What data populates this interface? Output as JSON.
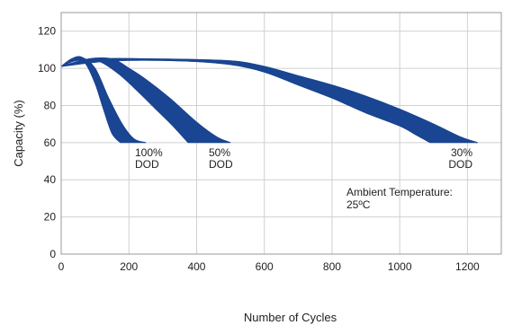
{
  "chart_data": {
    "type": "area",
    "title": "",
    "xlabel": "Number of Cycles",
    "ylabel": "Capacity (%)",
    "xlim": [
      0,
      1300
    ],
    "ylim": [
      0,
      130
    ],
    "xticks": [
      0,
      200,
      400,
      600,
      800,
      1000,
      1200
    ],
    "yticks": [
      0,
      20,
      40,
      60,
      80,
      100,
      120
    ],
    "grid": true,
    "band_color": "#1a4592",
    "series": [
      {
        "name": "100% DOD",
        "label_lines": [
          "100%",
          "DOD"
        ],
        "upper": [
          [
            0,
            101
          ],
          [
            30,
            105
          ],
          [
            60,
            106
          ],
          [
            100,
            100
          ],
          [
            140,
            84
          ],
          [
            180,
            70
          ],
          [
            215,
            62
          ],
          [
            250,
            60
          ]
        ],
        "lower": [
          [
            0,
            101
          ],
          [
            40,
            104
          ],
          [
            70,
            103
          ],
          [
            100,
            92
          ],
          [
            125,
            78
          ],
          [
            150,
            65
          ],
          [
            175,
            60
          ]
        ]
      },
      {
        "name": "50% DOD",
        "label_lines": [
          "50%",
          "DOD"
        ],
        "upper": [
          [
            0,
            101
          ],
          [
            80,
            105
          ],
          [
            150,
            105
          ],
          [
            200,
            100
          ],
          [
            250,
            94
          ],
          [
            320,
            84
          ],
          [
            400,
            71
          ],
          [
            460,
            63
          ],
          [
            500,
            60
          ]
        ],
        "lower": [
          [
            0,
            101
          ],
          [
            70,
            104
          ],
          [
            110,
            104
          ],
          [
            170,
            97
          ],
          [
            230,
            87
          ],
          [
            280,
            78
          ],
          [
            330,
            69
          ],
          [
            375,
            60
          ]
        ]
      },
      {
        "name": "30% DOD",
        "label_lines": [
          "30%",
          "DOD"
        ],
        "upper": [
          [
            0,
            101
          ],
          [
            100,
            105
          ],
          [
            300,
            105
          ],
          [
            500,
            104
          ],
          [
            600,
            101
          ],
          [
            700,
            96
          ],
          [
            800,
            91
          ],
          [
            900,
            85
          ],
          [
            1000,
            78
          ],
          [
            1100,
            70
          ],
          [
            1180,
            63
          ],
          [
            1230,
            60
          ]
        ],
        "lower": [
          [
            0,
            101
          ],
          [
            150,
            104
          ],
          [
            350,
            104
          ],
          [
            500,
            102
          ],
          [
            600,
            98
          ],
          [
            700,
            91
          ],
          [
            800,
            84
          ],
          [
            900,
            76
          ],
          [
            1000,
            69
          ],
          [
            1050,
            64
          ],
          [
            1090,
            60
          ]
        ]
      }
    ],
    "annotation_lines": [
      "Ambient Temperature:",
      "25ºC"
    ]
  }
}
